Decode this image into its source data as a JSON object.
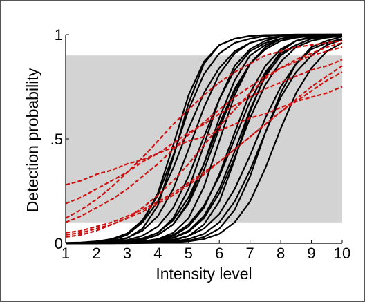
{
  "chart_data": {
    "type": "line",
    "title": "",
    "xlabel": "Intensity level",
    "ylabel": "Detection probability",
    "xlim": [
      1,
      10
    ],
    "ylim": [
      0,
      1
    ],
    "x_ticks": [
      "1",
      "2",
      "3",
      "4",
      "5",
      "6",
      "7",
      "8",
      "9",
      "10"
    ],
    "y_ticks": [
      {
        "value": 0,
        "label": "0"
      },
      {
        "value": 0.5,
        "label": ".5"
      },
      {
        "value": 1,
        "label": "1"
      }
    ],
    "shaded_band": {
      "ymin": 0.1,
      "ymax": 0.9,
      "color": "#d3d3d3"
    },
    "grid": false,
    "colors": {
      "black_curves": "#000000",
      "red_curves": "#cc1111",
      "band": "#d3d3d3"
    },
    "x_samples": [
      1,
      1.5,
      2,
      2.5,
      3,
      3.5,
      4,
      4.5,
      5,
      5.5,
      6,
      6.5,
      7,
      7.5,
      8,
      8.5,
      9,
      9.5,
      10
    ],
    "black_curves": [
      {
        "values": [
          0.001,
          0.002,
          0.006,
          0.015,
          0.04,
          0.1,
          0.24,
          0.47,
          0.71,
          0.87,
          0.95,
          0.98,
          0.993,
          0.997,
          0.999,
          1.0,
          1.0,
          1.0,
          1.0
        ]
      },
      {
        "values": [
          0.001,
          0.003,
          0.008,
          0.02,
          0.047,
          0.11,
          0.23,
          0.42,
          0.64,
          0.81,
          0.91,
          0.96,
          0.98,
          0.993,
          0.997,
          0.999,
          1.0,
          1.0,
          1.0
        ]
      },
      {
        "values": [
          0.0,
          0.001,
          0.003,
          0.008,
          0.024,
          0.07,
          0.18,
          0.41,
          0.67,
          0.86,
          0.95,
          0.98,
          0.994,
          0.998,
          0.999,
          1.0,
          1.0,
          1.0,
          1.0
        ]
      },
      {
        "values": [
          0.001,
          0.002,
          0.005,
          0.011,
          0.026,
          0.06,
          0.13,
          0.26,
          0.45,
          0.65,
          0.81,
          0.91,
          0.96,
          0.98,
          0.992,
          0.997,
          0.999,
          1.0,
          1.0
        ]
      },
      {
        "values": [
          0.0,
          0.001,
          0.002,
          0.004,
          0.009,
          0.022,
          0.05,
          0.12,
          0.26,
          0.47,
          0.69,
          0.85,
          0.93,
          0.97,
          0.99,
          0.996,
          0.998,
          0.999,
          1.0
        ]
      },
      {
        "values": [
          0.0,
          0.001,
          0.002,
          0.005,
          0.011,
          0.024,
          0.05,
          0.11,
          0.22,
          0.38,
          0.57,
          0.74,
          0.86,
          0.93,
          0.97,
          0.985,
          0.993,
          0.997,
          0.999
        ]
      },
      {
        "values": [
          0.0,
          0.001,
          0.001,
          0.003,
          0.007,
          0.017,
          0.04,
          0.09,
          0.19,
          0.35,
          0.55,
          0.73,
          0.86,
          0.93,
          0.97,
          0.99,
          0.995,
          0.998,
          0.999
        ]
      },
      {
        "values": [
          0.0,
          0.0,
          0.001,
          0.001,
          0.003,
          0.008,
          0.02,
          0.05,
          0.12,
          0.27,
          0.49,
          0.71,
          0.86,
          0.94,
          0.98,
          0.99,
          0.996,
          0.999,
          1.0
        ]
      },
      {
        "values": [
          0.0,
          0.0,
          0.001,
          0.002,
          0.004,
          0.009,
          0.02,
          0.04,
          0.09,
          0.18,
          0.32,
          0.5,
          0.68,
          0.82,
          0.91,
          0.95,
          0.98,
          0.99,
          0.995
        ]
      },
      {
        "values": [
          0.0,
          0.0,
          0.0,
          0.001,
          0.002,
          0.005,
          0.012,
          0.027,
          0.06,
          0.13,
          0.26,
          0.44,
          0.64,
          0.8,
          0.9,
          0.95,
          0.98,
          0.99,
          0.995
        ]
      },
      {
        "values": [
          0.0,
          0.0,
          0.0,
          0.001,
          0.002,
          0.005,
          0.011,
          0.025,
          0.055,
          0.12,
          0.24,
          0.41,
          0.6,
          0.76,
          0.87,
          0.94,
          0.97,
          0.985,
          0.993
        ]
      },
      {
        "values": [
          0.0,
          0.0,
          0.0,
          0.0,
          0.001,
          0.002,
          0.005,
          0.013,
          0.035,
          0.09,
          0.2,
          0.4,
          0.63,
          0.81,
          0.92,
          0.97,
          0.99,
          0.996,
          0.998
        ]
      },
      {
        "values": [
          0.0,
          0.0,
          0.0,
          0.001,
          0.002,
          0.004,
          0.008,
          0.017,
          0.035,
          0.07,
          0.14,
          0.26,
          0.42,
          0.6,
          0.75,
          0.86,
          0.93,
          0.96,
          0.98
        ]
      },
      {
        "values": [
          0.0,
          0.0,
          0.0,
          0.0,
          0.001,
          0.002,
          0.004,
          0.009,
          0.02,
          0.045,
          0.1,
          0.2,
          0.35,
          0.53,
          0.7,
          0.82,
          0.9,
          0.95,
          0.975
        ]
      },
      {
        "values": [
          0.0,
          0.0,
          0.0,
          0.0,
          0.0,
          0.001,
          0.002,
          0.005,
          0.012,
          0.03,
          0.07,
          0.16,
          0.32,
          0.53,
          0.72,
          0.86,
          0.94,
          0.97,
          0.99
        ]
      },
      {
        "values": [
          0.0,
          0.0,
          0.0,
          0.0,
          0.0,
          0.001,
          0.002,
          0.004,
          0.009,
          0.02,
          0.045,
          0.1,
          0.2,
          0.36,
          0.55,
          0.72,
          0.84,
          0.92,
          0.96
        ]
      },
      {
        "values": [
          0.002,
          0.004,
          0.009,
          0.02,
          0.045,
          0.1,
          0.2,
          0.36,
          0.55,
          0.72,
          0.84,
          0.92,
          0.96,
          0.98,
          0.991,
          0.996,
          0.998,
          0.999,
          1.0
        ]
      },
      {
        "values": [
          0.0,
          0.001,
          0.002,
          0.006,
          0.015,
          0.036,
          0.08,
          0.17,
          0.32,
          0.51,
          0.69,
          0.83,
          0.92,
          0.96,
          0.98,
          0.992,
          0.996,
          0.998,
          0.999
        ]
      },
      {
        "values": [
          0.0,
          0.0,
          0.001,
          0.002,
          0.006,
          0.015,
          0.04,
          0.09,
          0.2,
          0.38,
          0.6,
          0.78,
          0.9,
          0.95,
          0.98,
          0.992,
          0.997,
          0.999,
          1.0
        ]
      },
      {
        "values": [
          0.0,
          0.0,
          0.0,
          0.001,
          0.002,
          0.006,
          0.015,
          0.035,
          0.08,
          0.17,
          0.33,
          0.53,
          0.72,
          0.85,
          0.93,
          0.97,
          0.985,
          0.993,
          0.997
        ]
      }
    ],
    "red_curves": [
      {
        "values": [
          0.28,
          0.3,
          0.33,
          0.35,
          0.38,
          0.4,
          0.43,
          0.46,
          0.49,
          0.51,
          0.54,
          0.57,
          0.6,
          0.62,
          0.65,
          0.68,
          0.7,
          0.72,
          0.75
        ]
      },
      {
        "values": [
          0.19,
          0.22,
          0.26,
          0.3,
          0.34,
          0.39,
          0.43,
          0.48,
          0.53,
          0.57,
          0.62,
          0.66,
          0.7,
          0.74,
          0.77,
          0.8,
          0.83,
          0.85,
          0.88
        ]
      },
      {
        "values": [
          0.12,
          0.16,
          0.21,
          0.27,
          0.34,
          0.41,
          0.49,
          0.57,
          0.64,
          0.71,
          0.77,
          0.82,
          0.86,
          0.9,
          0.92,
          0.94,
          0.95,
          0.96,
          0.97
        ]
      },
      {
        "values": [
          0.1,
          0.13,
          0.17,
          0.21,
          0.26,
          0.32,
          0.38,
          0.45,
          0.52,
          0.58,
          0.64,
          0.7,
          0.75,
          0.8,
          0.84,
          0.87,
          0.9,
          0.92,
          0.94
        ]
      },
      {
        "values": [
          0.03,
          0.04,
          0.06,
          0.09,
          0.12,
          0.17,
          0.23,
          0.3,
          0.38,
          0.47,
          0.56,
          0.64,
          0.72,
          0.79,
          0.84,
          0.88,
          0.91,
          0.94,
          0.96
        ]
      },
      {
        "values": [
          0.04,
          0.05,
          0.07,
          0.09,
          0.12,
          0.15,
          0.19,
          0.23,
          0.28,
          0.33,
          0.39,
          0.45,
          0.51,
          0.57,
          0.63,
          0.68,
          0.73,
          0.78,
          0.82
        ]
      },
      {
        "values": [
          0.05,
          0.06,
          0.08,
          0.1,
          0.13,
          0.16,
          0.2,
          0.24,
          0.29,
          0.34,
          0.39,
          0.45,
          0.51,
          0.57,
          0.63,
          0.69,
          0.75,
          0.8,
          0.85
        ]
      }
    ]
  }
}
